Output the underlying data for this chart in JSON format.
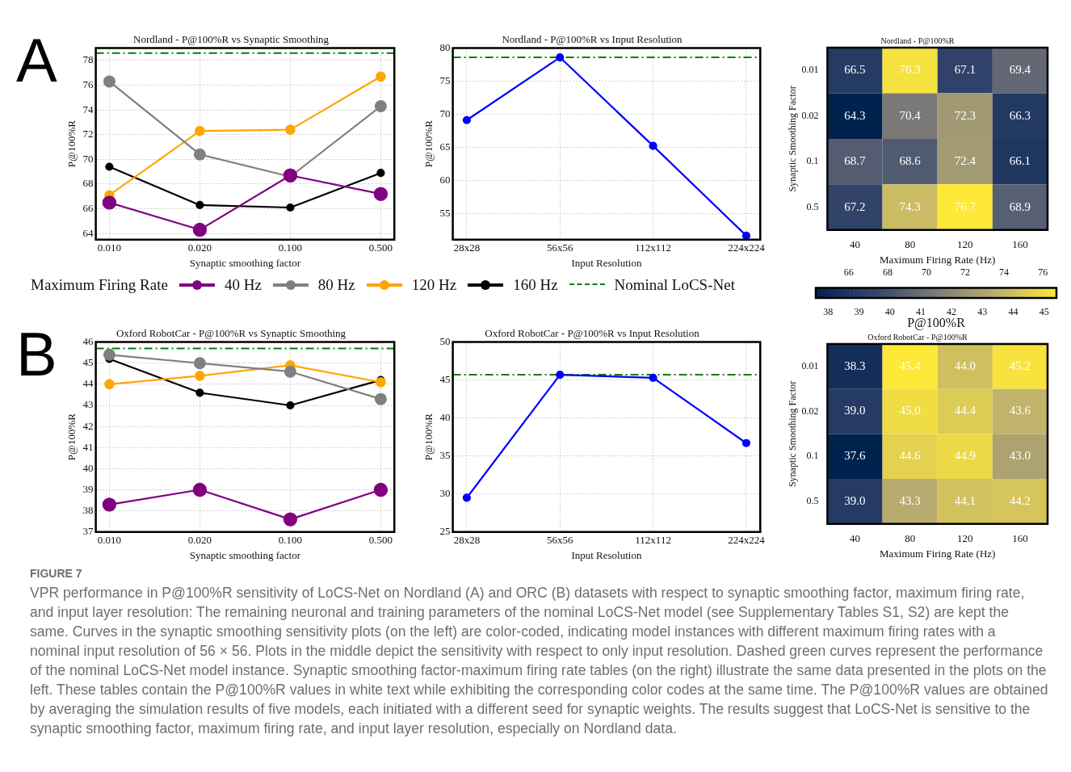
{
  "chart_data": [
    {
      "type": "line",
      "title": "Nordland - P@100%R vs Synaptic Smoothing",
      "xlabel": "Synaptic smoothing factor",
      "ylabel": "P@100%R",
      "categories": [
        "0.010",
        "0.020",
        "0.100",
        "0.500"
      ],
      "series": [
        {
          "name": "40 Hz",
          "color": "#800080",
          "values": [
            66.5,
            64.3,
            68.7,
            67.2
          ]
        },
        {
          "name": "80 Hz",
          "color": "#808080",
          "values": [
            76.3,
            70.4,
            68.6,
            74.3
          ]
        },
        {
          "name": "120 Hz",
          "color": "#ffa500",
          "values": [
            67.1,
            72.3,
            72.4,
            76.7
          ]
        },
        {
          "name": "160 Hz",
          "color": "#000000",
          "values": [
            69.4,
            66.3,
            66.1,
            68.9
          ]
        }
      ],
      "ylim": [
        63.5,
        79
      ],
      "yticks": [
        64,
        66,
        68,
        70,
        72,
        74,
        76,
        78
      ],
      "grid": true,
      "marker": "circle",
      "legend": "bottom",
      "legend_title": "Maximum Firing Rate",
      "ref_lines": [
        {
          "axis": "y",
          "value": 78.6,
          "label": "Nominal LoCS-Net",
          "color": "#008000",
          "line_style": "dashed"
        }
      ],
      "annotations": [
        "A"
      ]
    },
    {
      "type": "line",
      "title": "Nordland - P@100%R vs Input Resolution",
      "xlabel": "Input Resolution",
      "ylabel": "P@100%R",
      "categories": [
        "28x28",
        "56x56",
        "112x112",
        "224x224"
      ],
      "series": [
        {
          "color": "#0000ff",
          "values": [
            69.1,
            78.6,
            65.2,
            51.6
          ]
        }
      ],
      "ylim": [
        51,
        80
      ],
      "yticks": [
        55,
        60,
        65,
        70,
        75,
        80
      ],
      "grid": true,
      "marker": "circle",
      "ref_lines": [
        {
          "axis": "y",
          "value": 78.6,
          "color": "#008000",
          "line_style": "dashed"
        }
      ]
    },
    {
      "type": "heatmap",
      "title": "Nordland - P@100%R",
      "xlabel": "Maximum Firing Rate (Hz)",
      "ylabel": "Synaptic Smoothing Factor",
      "categories": [
        "40",
        "80",
        "120",
        "160"
      ],
      "y_categories": [
        "0.01",
        "0.02",
        "0.1",
        "0.5"
      ],
      "cells": [
        [
          66.5,
          76.3,
          67.1,
          69.4
        ],
        [
          64.3,
          70.4,
          72.3,
          66.3
        ],
        [
          68.7,
          68.6,
          72.4,
          66.1
        ],
        [
          67.2,
          74.3,
          76.7,
          68.9
        ]
      ],
      "cell_labels": [
        [
          "66.5",
          "76.3",
          "67.1",
          "69.4"
        ],
        [
          "64.3",
          "70.4",
          "72.3",
          "66.3"
        ],
        [
          "68.7",
          "68.6",
          "72.4",
          "66.1"
        ],
        [
          "67.2",
          "74.3",
          "76.7",
          "68.9"
        ]
      ],
      "clim": [
        64.3,
        76.7
      ],
      "cticks": [
        66,
        68,
        70,
        72,
        74,
        76
      ]
    },
    {
      "type": "line",
      "title": "Oxford RobotCar - P@100%R vs Synaptic Smoothing",
      "xlabel": "Synaptic smoothing factor",
      "ylabel": "P@100%R",
      "categories": [
        "0.010",
        "0.020",
        "0.100",
        "0.500"
      ],
      "series": [
        {
          "color": "#800080",
          "values": [
            38.3,
            39.0,
            37.6,
            39.0
          ]
        },
        {
          "color": "#808080",
          "values": [
            45.4,
            45.0,
            44.6,
            43.3
          ]
        },
        {
          "color": "#ffa500",
          "values": [
            44.0,
            44.4,
            44.9,
            44.1
          ]
        },
        {
          "color": "#000000",
          "values": [
            45.2,
            43.6,
            43.0,
            44.2
          ]
        }
      ],
      "ylim": [
        37,
        46
      ],
      "yticks": [
        37,
        38,
        39,
        40,
        41,
        42,
        43,
        44,
        45,
        46
      ],
      "grid": true,
      "marker": "circle",
      "ref_lines": [
        {
          "axis": "y",
          "value": 45.7,
          "color": "#008000",
          "line_style": "dashed"
        }
      ],
      "annotations": [
        "B"
      ]
    },
    {
      "type": "line",
      "title": "Oxford RobotCar - P@100%R vs Input Resolution",
      "xlabel": "Input Resolution",
      "ylabel": "P@100%R",
      "categories": [
        "28x28",
        "56x56",
        "112x112",
        "224x224"
      ],
      "series": [
        {
          "color": "#0000ff",
          "values": [
            29.5,
            45.7,
            45.3,
            36.7
          ]
        }
      ],
      "ylim": [
        25,
        50
      ],
      "yticks": [
        25,
        30,
        35,
        40,
        45,
        50
      ],
      "grid": true,
      "marker": "circle",
      "ref_lines": [
        {
          "axis": "y",
          "value": 45.7,
          "color": "#008000",
          "line_style": "dashed"
        }
      ]
    },
    {
      "type": "heatmap",
      "title": "Oxford RobotCar - P@100%R",
      "xlabel": "Maximum Firing Rate (Hz)",
      "ylabel": "Synaptic Smoothing Factor",
      "categories": [
        "40",
        "80",
        "120",
        "160"
      ],
      "y_categories": [
        "0.01",
        "0.02",
        "0.1",
        "0.5"
      ],
      "cells": [
        [
          38.3,
          45.4,
          44.0,
          45.2
        ],
        [
          39.0,
          45.0,
          44.4,
          43.6
        ],
        [
          37.6,
          44.6,
          44.9,
          43.0
        ],
        [
          39.0,
          43.3,
          44.1,
          44.2
        ]
      ],
      "cell_labels": [
        [
          "38.3",
          "45.4",
          "44.0",
          "45.2"
        ],
        [
          "39.0",
          "45.0",
          "44.4",
          "43.6"
        ],
        [
          "37.6",
          "44.6",
          "44.9",
          "43.0"
        ],
        [
          "39.0",
          "43.3",
          "44.1",
          "44.2"
        ]
      ],
      "clim": [
        37.6,
        45.4
      ],
      "cticks": [
        38,
        39,
        40,
        41,
        42,
        43,
        44,
        45
      ],
      "clabel": "P@100%R",
      "annotations": [
        "FIGURE 7",
        "VPR performance in P@100%R sensitivity of LoCS-Net on Nordland (A) and ORC (B) datasets with respect to synaptic smoothing factor, maximum firing rate, and input layer resolution: The remaining neuronal and training parameters of the nominal LoCS-Net model (see Supplementary Tables S1, S2) are kept the same. Curves in the synaptic smoothing sensitivity plots (on the left) are color-coded, indicating model instances with different maximum firing rates with a nominal input resolution of 56 × 56. Plots in the middle depict the sensitivity with respect to only input resolution. Dashed green curves represent the performance of the nominal LoCS-Net model instance. Synaptic smoothing factor-maximum firing rate tables (on the right) illustrate the same data presented in the plots on the left. These tables contain the P@100%R values in white text while exhibiting the corresponding color codes at the same time. The P@100%R values are obtained by averaging the simulation results of five models, each initiated with a different seed for synaptic weights. The results suggest that LoCS-Net is sensitive to the synaptic smoothing factor, maximum firing rate, and input layer resolution, especially on Nordland data."
      ]
    }
  ]
}
